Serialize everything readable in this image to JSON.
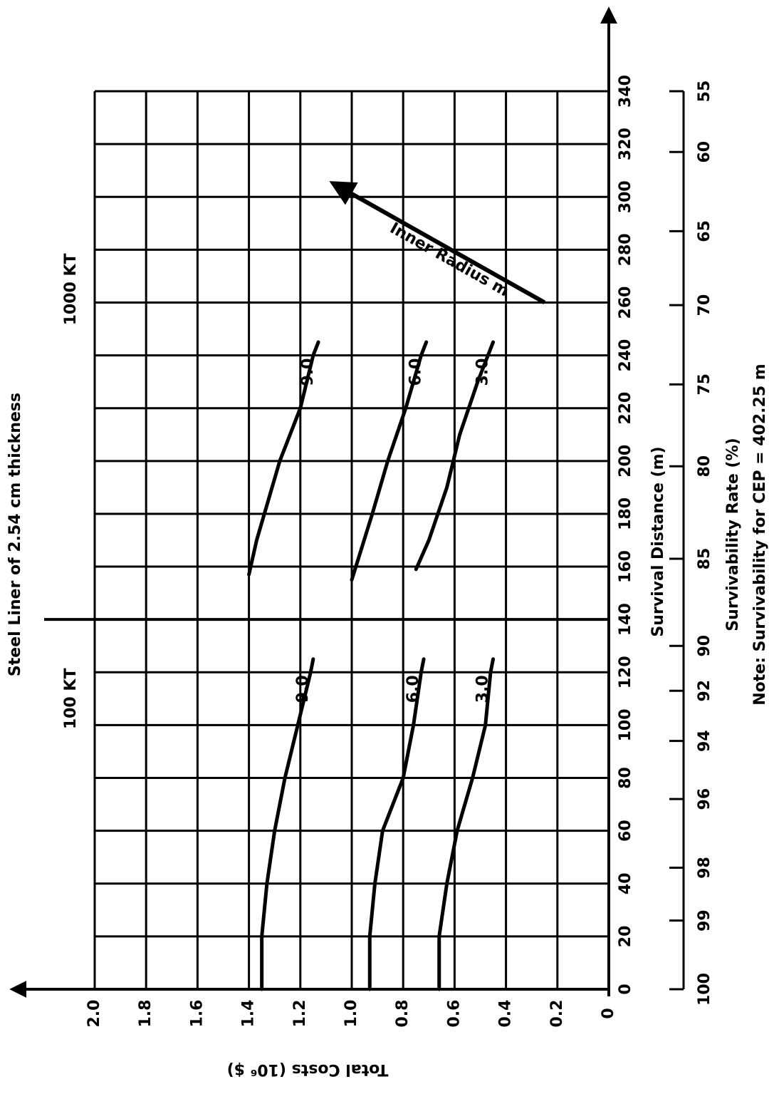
{
  "chart_data": {
    "type": "line",
    "title": "Steel Liner of 2.54 cm thickness",
    "x_label": "Survival Distance (m)",
    "y_label": "Total Costs (10⁶ $)",
    "x2_label": "Survivability Rate (%)",
    "note": "Note:  Survivability for CEP = 402.25 m",
    "annotations": [
      {
        "text": "100 KT",
        "x": 110,
        "y": 1.9
      },
      {
        "text": "1000 KT",
        "x": 265,
        "y": 1.9
      },
      {
        "text": "Inner Radius m",
        "x": [
          260,
          305
        ],
        "y": [
          0.25,
          1.07
        ]
      }
    ],
    "divider_x": 140,
    "xlim": [
      0,
      340
    ],
    "xticks": [
      0,
      20,
      40,
      60,
      80,
      100,
      120,
      140,
      160,
      180,
      200,
      220,
      240,
      260,
      280,
      300,
      320,
      340
    ],
    "ylim": [
      0,
      2
    ],
    "yticks": [
      0,
      0.2,
      0.4,
      0.6,
      0.8,
      {
        "value": 1,
        "label": "1.0"
      },
      1.2,
      1.4,
      1.6,
      1.8,
      {
        "value": 2,
        "label": "2.0"
      }
    ],
    "x2ticks": [
      {
        "value": 0,
        "label": "100"
      },
      {
        "value": 26,
        "label": "99"
      },
      {
        "value": 46,
        "label": "98"
      },
      {
        "value": 72,
        "label": "96"
      },
      {
        "value": 94,
        "label": "94"
      },
      {
        "value": 113,
        "label": "92"
      },
      {
        "value": 130,
        "label": "90"
      },
      {
        "value": 163,
        "label": "85"
      },
      {
        "value": 198,
        "label": "80"
      },
      {
        "value": 229,
        "label": "75"
      },
      {
        "value": 259,
        "label": "70"
      },
      {
        "value": 287,
        "label": "65"
      },
      {
        "value": 317,
        "label": "60"
      },
      {
        "value": 340,
        "label": "55"
      }
    ],
    "grid": true,
    "color": "#000000",
    "series": [
      {
        "name": "9.0",
        "x": [
          0,
          20,
          40,
          60,
          80,
          100,
          120,
          125
        ],
        "values": [
          1.35,
          1.35,
          1.33,
          1.3,
          1.26,
          1.21,
          1.16,
          1.15
        ]
      },
      {
        "name": "6.0",
        "x": [
          0,
          20,
          40,
          60,
          80,
          100,
          120,
          125
        ],
        "values": [
          0.93,
          0.93,
          0.91,
          0.88,
          0.8,
          0.76,
          0.73,
          0.72
        ]
      },
      {
        "name": "3.0",
        "x": [
          0,
          20,
          40,
          60,
          80,
          100,
          120,
          125
        ],
        "values": [
          0.66,
          0.66,
          0.63,
          0.59,
          0.53,
          0.48,
          0.46,
          0.45
        ]
      },
      {
        "name": "9.0",
        "x": [
          157,
          170,
          200,
          220,
          240,
          245
        ],
        "values": [
          1.4,
          1.37,
          1.28,
          1.2,
          1.15,
          1.13
        ]
      },
      {
        "name": "6.0",
        "x": [
          155,
          180,
          200,
          220,
          240,
          245
        ],
        "values": [
          1.0,
          0.92,
          0.86,
          0.79,
          0.73,
          0.71
        ]
      },
      {
        "name": "3.0",
        "x": [
          159,
          170,
          190,
          210,
          230,
          245
        ],
        "values": [
          0.75,
          0.7,
          0.63,
          0.58,
          0.51,
          0.45
        ]
      }
    ]
  }
}
